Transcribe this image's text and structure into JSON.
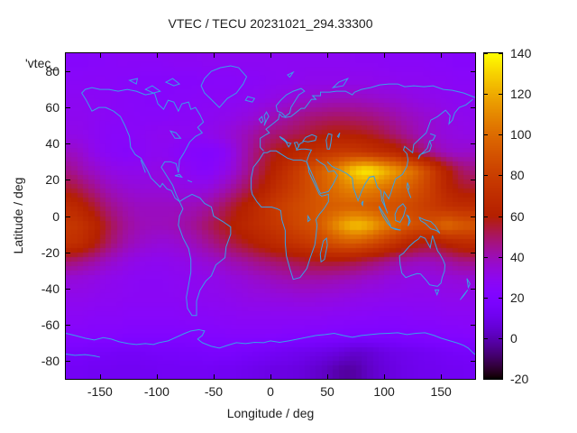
{
  "title": "VTEC / TECU 20231021_294.33300",
  "key_label": "'vtec_",
  "axes": {
    "x": {
      "label": "Longitude / deg",
      "range": [
        -180,
        180
      ],
      "ticks": [
        -150,
        -100,
        -50,
        0,
        50,
        100,
        150
      ]
    },
    "y": {
      "label": "Latitude / deg",
      "range": [
        -90,
        90
      ],
      "ticks": [
        80,
        60,
        40,
        20,
        0,
        -20,
        -40,
        -60,
        -80
      ]
    },
    "colorbar": {
      "range": [
        -20,
        140
      ],
      "ticks": [
        140,
        120,
        100,
        80,
        60,
        40,
        20,
        0,
        -20
      ]
    }
  },
  "colors": {
    "background": "#ffffff",
    "border": "#000000",
    "text": "#202020",
    "coastline": "#38a1e8",
    "palette_stops": [
      {
        "value": -20,
        "color": "#000000"
      },
      {
        "value": 0,
        "color": "#5a00b4"
      },
      {
        "value": 20,
        "color": "#8004ff"
      },
      {
        "value": 40,
        "color": "#9c0db4"
      },
      {
        "value": 60,
        "color": "#b42000"
      },
      {
        "value": 80,
        "color": "#ca3e00"
      },
      {
        "value": 100,
        "color": "#dd6c00"
      },
      {
        "value": 120,
        "color": "#efab00"
      },
      {
        "value": 140,
        "color": "#ffff00"
      }
    ]
  },
  "chart_data": {
    "type": "heatmap",
    "title": "VTEC / TECU 20231021_294.33300",
    "xlabel": "Longitude / deg",
    "ylabel": "Latitude / deg",
    "xlim": [
      -180,
      180
    ],
    "ylim": [
      -90,
      90
    ],
    "value_label": "VTEC / TECU",
    "value_range": [
      -20,
      140
    ],
    "legend_entry": "'vtec_",
    "grid_note": "values[row][col]: rows = lat_centers (north to south), cols = lon_centers (west to east), TECU",
    "lon_centers": [
      -175,
      -165,
      -155,
      -145,
      -135,
      -125,
      -115,
      -105,
      -95,
      -85,
      -75,
      -65,
      -55,
      -45,
      -35,
      -25,
      -15,
      -5,
      5,
      15,
      25,
      35,
      45,
      55,
      65,
      75,
      85,
      95,
      105,
      115,
      125,
      135,
      145,
      155,
      165,
      175
    ],
    "lat_centers": [
      85,
      75,
      65,
      55,
      45,
      35,
      25,
      15,
      5,
      -5,
      -15,
      -25,
      -35,
      -45,
      -55,
      -65,
      -75,
      -85
    ],
    "values": [
      [
        24,
        24,
        25,
        25,
        26,
        26,
        26,
        26,
        26,
        27,
        27,
        27,
        28,
        28,
        28,
        28,
        28,
        28,
        28,
        28,
        28,
        28,
        28,
        28,
        28,
        27,
        27,
        27,
        26,
        26,
        26,
        26,
        25,
        25,
        24,
        24
      ],
      [
        26,
        26,
        26,
        26,
        25,
        25,
        24,
        24,
        24,
        24,
        24,
        24,
        25,
        25,
        25,
        26,
        26,
        27,
        28,
        28,
        29,
        30,
        30,
        30,
        30,
        30,
        30,
        29,
        29,
        28,
        28,
        28,
        27,
        27,
        26,
        26
      ],
      [
        28,
        28,
        27,
        27,
        26,
        25,
        25,
        24,
        24,
        25,
        25,
        26,
        26,
        27,
        27,
        28,
        29,
        30,
        32,
        33,
        35,
        36,
        37,
        38,
        38,
        38,
        37,
        36,
        35,
        34,
        32,
        31,
        30,
        29,
        28,
        28
      ],
      [
        29,
        29,
        28,
        27,
        26,
        26,
        25,
        25,
        25,
        26,
        26,
        27,
        28,
        29,
        30,
        32,
        34,
        37,
        40,
        42,
        45,
        47,
        48,
        49,
        49,
        48,
        47,
        45,
        43,
        40,
        38,
        36,
        34,
        32,
        30,
        29
      ],
      [
        31,
        30,
        28,
        26,
        25,
        26,
        27,
        28,
        29,
        29,
        28,
        28,
        30,
        32,
        35,
        38,
        42,
        46,
        48,
        50,
        52,
        55,
        58,
        60,
        60,
        59,
        57,
        54,
        50,
        46,
        42,
        38,
        35,
        33,
        32,
        31
      ],
      [
        38,
        35,
        30,
        27,
        25,
        24,
        26,
        28,
        28,
        26,
        24,
        23,
        22,
        24,
        30,
        38,
        46,
        52,
        58,
        62,
        66,
        70,
        74,
        76,
        78,
        77,
        74,
        70,
        68,
        62,
        55,
        48,
        42,
        38,
        36,
        37
      ],
      [
        45,
        40,
        37,
        33,
        31,
        30,
        30,
        31,
        32,
        30,
        28,
        25,
        24,
        28,
        33,
        40,
        48,
        56,
        64,
        72,
        80,
        88,
        96,
        105,
        118,
        132,
        138,
        130,
        120,
        110,
        103,
        90,
        75,
        62,
        52,
        47
      ],
      [
        55,
        50,
        45,
        40,
        37,
        35,
        34,
        34,
        34,
        33,
        32,
        32,
        33,
        37,
        42,
        48,
        55,
        62,
        70,
        76,
        82,
        88,
        94,
        100,
        106,
        110,
        108,
        104,
        100,
        96,
        92,
        85,
        75,
        65,
        58,
        56
      ],
      [
        68,
        62,
        55,
        48,
        43,
        40,
        38,
        38,
        38,
        38,
        39,
        40,
        43,
        48,
        54,
        60,
        66,
        72,
        78,
        82,
        86,
        89,
        92,
        94,
        95,
        95,
        93,
        91,
        89,
        87,
        84,
        80,
        76,
        72,
        70,
        69
      ],
      [
        76,
        72,
        65,
        56,
        48,
        43,
        40,
        39,
        39,
        40,
        42,
        45,
        50,
        55,
        60,
        64,
        68,
        72,
        76,
        80,
        85,
        88,
        96,
        108,
        120,
        127,
        123,
        112,
        104,
        96,
        90,
        88,
        92,
        100,
        95,
        92
      ],
      [
        72,
        68,
        60,
        52,
        45,
        40,
        37,
        35,
        34,
        35,
        37,
        40,
        44,
        48,
        52,
        56,
        60,
        64,
        68,
        71,
        74,
        78,
        83,
        88,
        92,
        92,
        88,
        82,
        75,
        68,
        62,
        58,
        58,
        62,
        66,
        68
      ],
      [
        48,
        45,
        42,
        38,
        35,
        32,
        30,
        29,
        29,
        30,
        31,
        33,
        35,
        37,
        40,
        42,
        45,
        47,
        49,
        51,
        53,
        55,
        56,
        56,
        55,
        53,
        50,
        47,
        44,
        41,
        39,
        38,
        39,
        42,
        45,
        46
      ],
      [
        34,
        33,
        32,
        30,
        29,
        28,
        27,
        27,
        27,
        28,
        28,
        29,
        30,
        31,
        33,
        34,
        36,
        37,
        39,
        40,
        41,
        41,
        41,
        40,
        39,
        38,
        36,
        35,
        33,
        32,
        31,
        31,
        32,
        33,
        34,
        34
      ],
      [
        30,
        30,
        29,
        28,
        28,
        27,
        27,
        27,
        27,
        27,
        28,
        28,
        29,
        29,
        30,
        31,
        32,
        32,
        33,
        33,
        34,
        34,
        33,
        33,
        32,
        31,
        30,
        30,
        29,
        29,
        29,
        29,
        29,
        30,
        30,
        30
      ],
      [
        27,
        27,
        26,
        26,
        26,
        25,
        25,
        25,
        25,
        25,
        26,
        26,
        26,
        27,
        27,
        28,
        28,
        28,
        28,
        28,
        28,
        28,
        28,
        27,
        27,
        26,
        26,
        25,
        25,
        25,
        26,
        26,
        26,
        27,
        27,
        27
      ],
      [
        24,
        24,
        23,
        23,
        23,
        22,
        22,
        22,
        22,
        22,
        22,
        23,
        23,
        23,
        24,
        24,
        24,
        24,
        24,
        23,
        23,
        22,
        22,
        21,
        21,
        20,
        20,
        20,
        20,
        21,
        21,
        22,
        22,
        23,
        23,
        24
      ],
      [
        16,
        16,
        15,
        15,
        14,
        14,
        14,
        15,
        15,
        15,
        16,
        16,
        17,
        17,
        17,
        16,
        15,
        14,
        13,
        12,
        11,
        10,
        9,
        8,
        6,
        4,
        5,
        7,
        9,
        10,
        11,
        12,
        13,
        14,
        15,
        15
      ],
      [
        13,
        13,
        12,
        12,
        12,
        12,
        12,
        12,
        13,
        13,
        13,
        13,
        13,
        12,
        12,
        11,
        10,
        9,
        8,
        8,
        7,
        5,
        3,
        0,
        -3,
        -2,
        2,
        5,
        7,
        9,
        10,
        11,
        11,
        12,
        12,
        13
      ]
    ]
  }
}
